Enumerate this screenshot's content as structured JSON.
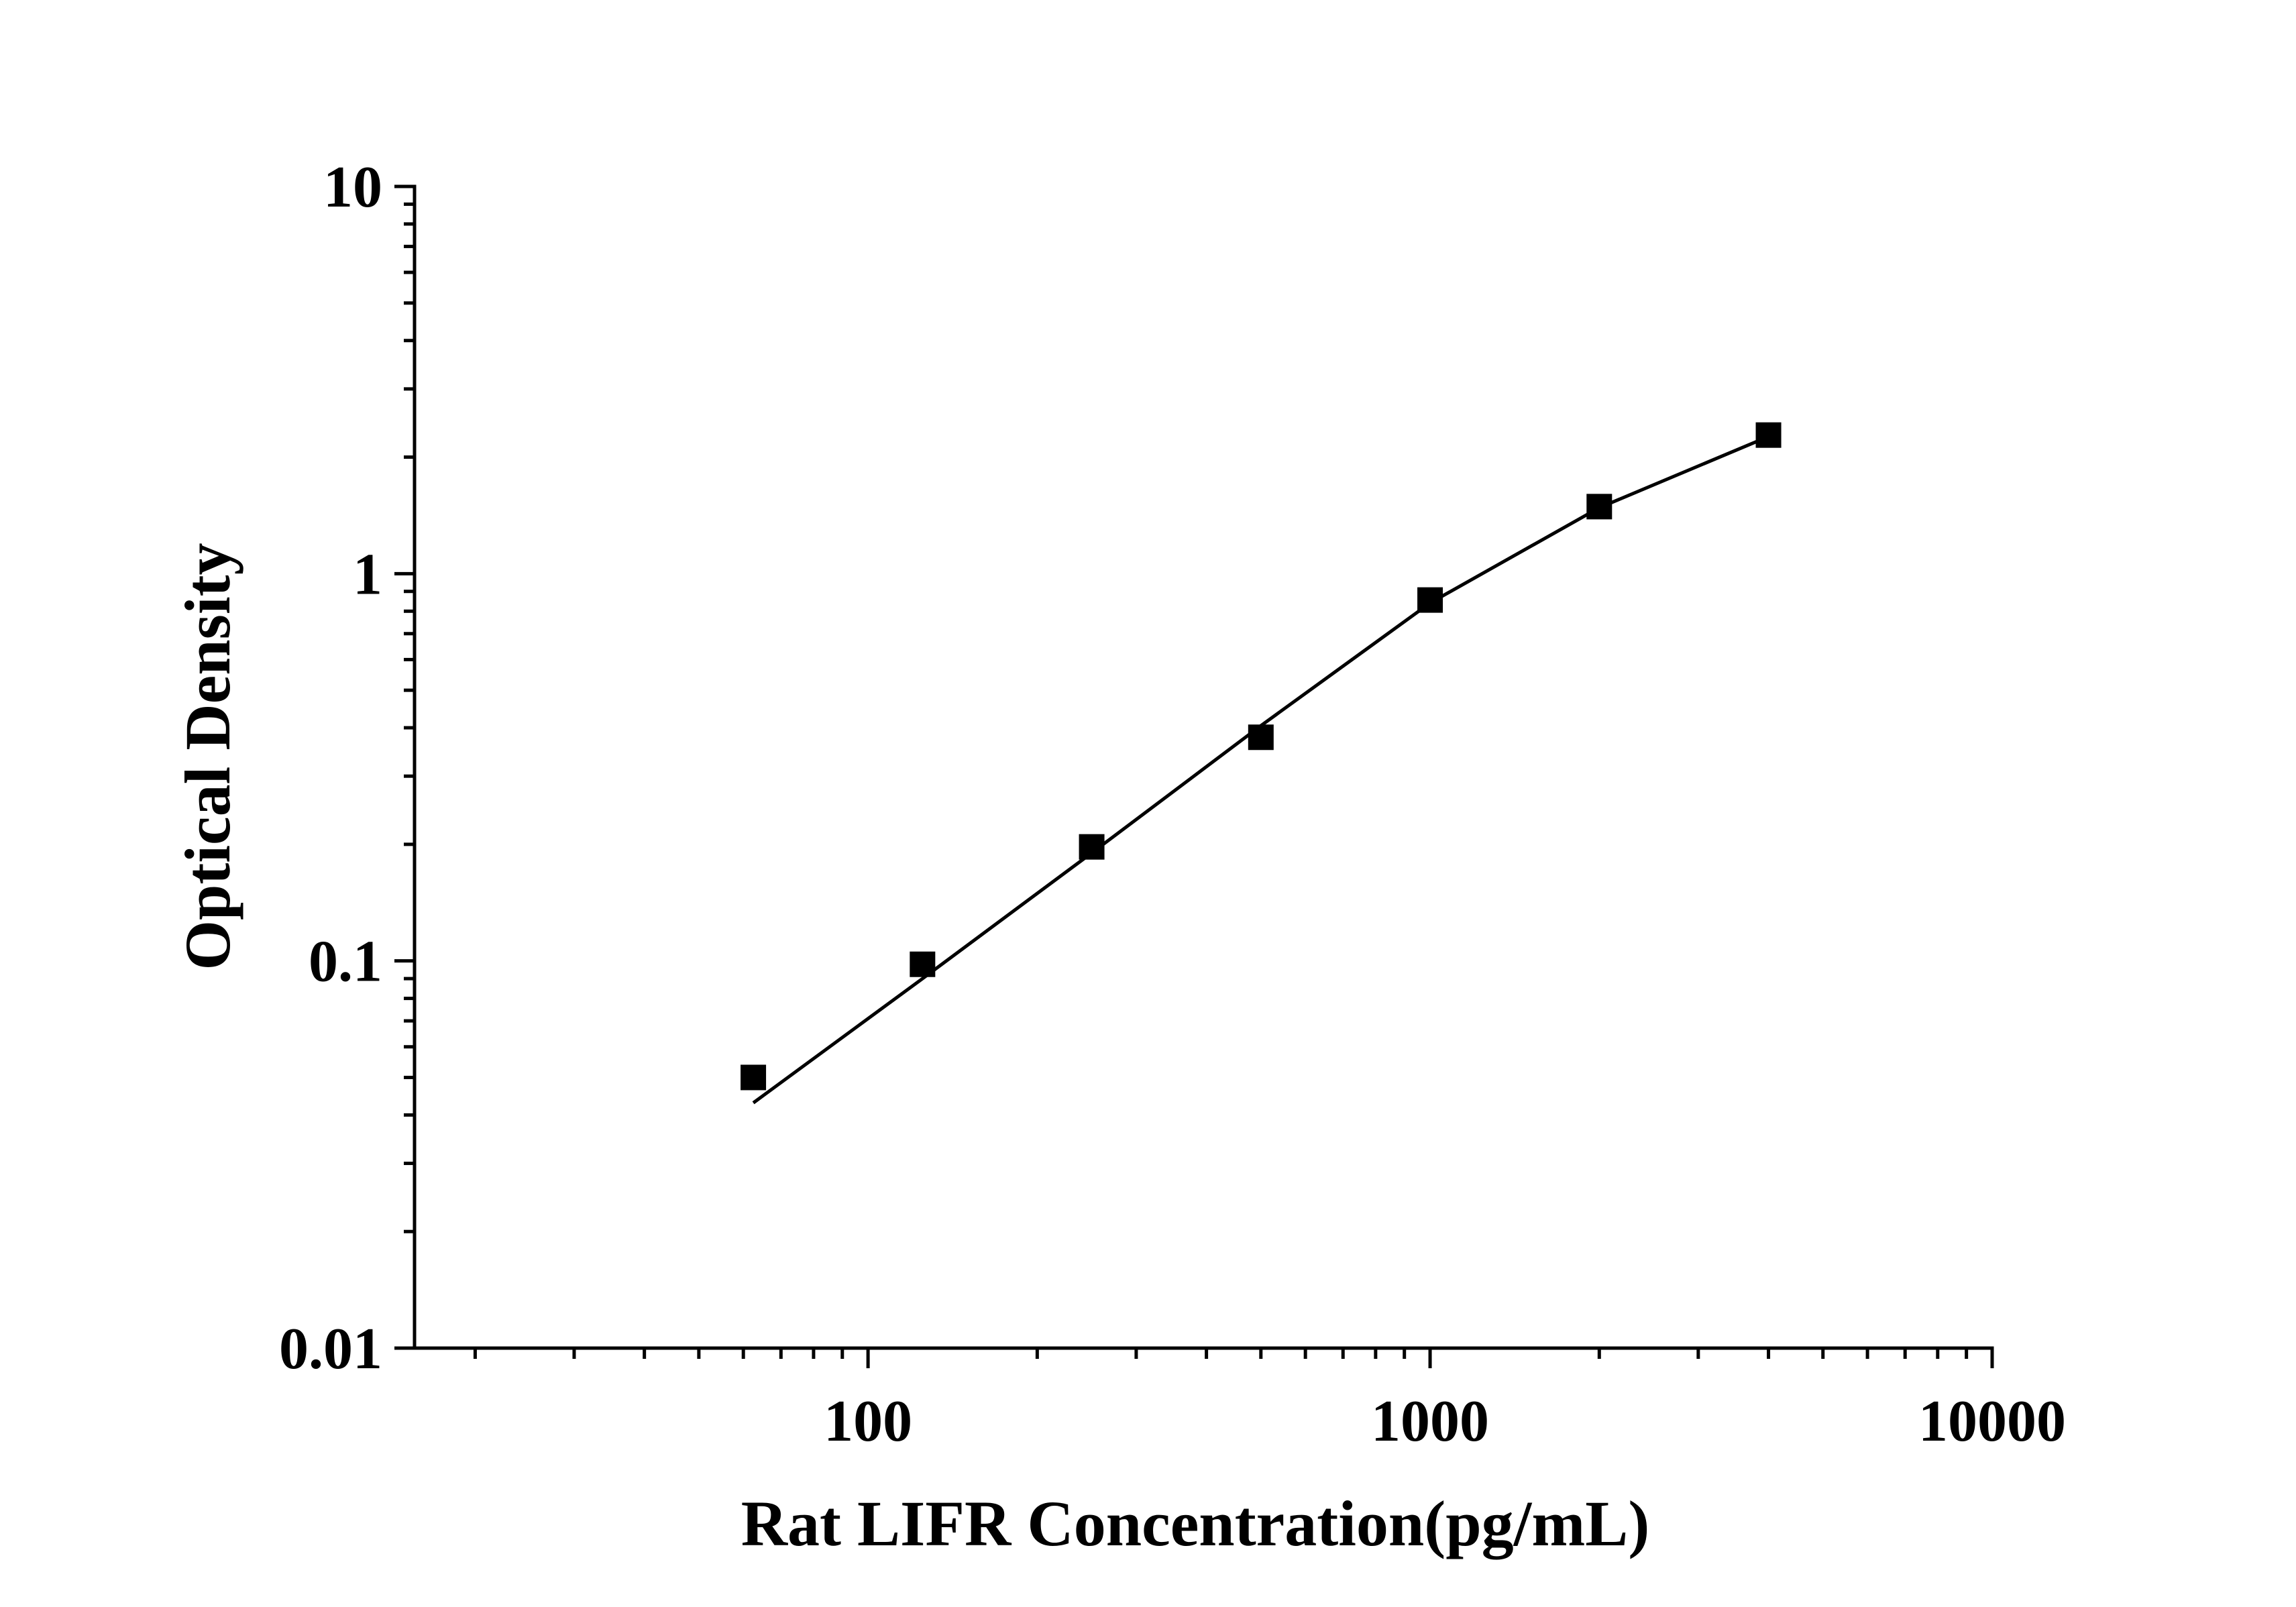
{
  "chart_data": {
    "type": "scatter",
    "title": "",
    "xlabel": "Rat LIFR Concentration(pg/mL)",
    "ylabel": "Optical Density",
    "x_scale": "log",
    "y_scale": "log",
    "xlim": [
      15.6,
      10000
    ],
    "ylim": [
      0.01,
      10
    ],
    "x_tick_labels": [
      "100",
      "1000",
      "10000"
    ],
    "y_tick_labels": [
      "0.01",
      "0.1",
      "1",
      "10"
    ],
    "grid": false,
    "legend": "none",
    "series": [
      {
        "kind": "points",
        "marker": "square",
        "color": "#000000",
        "x": [
          62.5,
          125,
          250,
          500,
          1000,
          2000,
          4000
        ],
        "y": [
          0.05,
          0.098,
          0.197,
          0.378,
          0.855,
          1.49,
          2.28
        ]
      },
      {
        "kind": "fitted-curve",
        "color": "#000000",
        "x": [
          62.5,
          125,
          250,
          500,
          1000,
          2000,
          4000
        ],
        "y": [
          0.043,
          0.09,
          0.19,
          0.405,
          0.84,
          1.48,
          2.26
        ]
      }
    ]
  }
}
